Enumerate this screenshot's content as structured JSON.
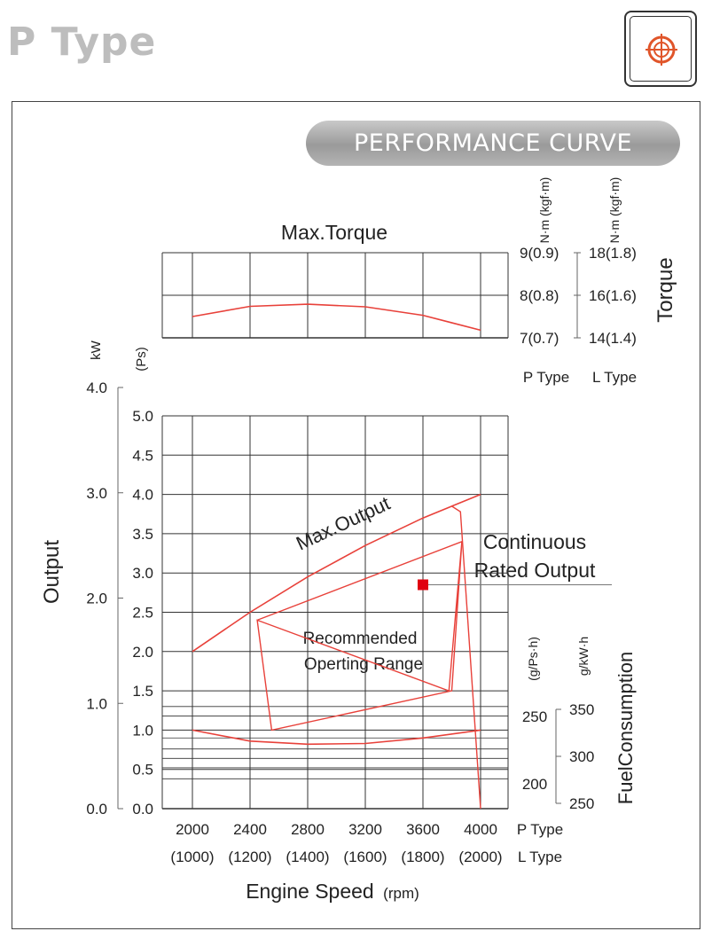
{
  "page": {
    "title": "P Type",
    "icon": "crosshair-target-icon",
    "banner": "PERFORMANCE CURVE"
  },
  "colors": {
    "curve": "#e8413a",
    "grid": "#333333",
    "banner": "#a8a8a8",
    "marker": "#e0000f"
  },
  "chart_data": {
    "type": "line",
    "title": "Max.Torque",
    "xlabel": "Engine Speed",
    "xlabel_unit": "(rpm)",
    "x": [
      2000,
      2400,
      2800,
      3200,
      3600,
      4000
    ],
    "x_labels_p": [
      "2000",
      "2400",
      "2800",
      "3200",
      "3600",
      "4000"
    ],
    "x_labels_l": [
      "(1000)",
      "(1200)",
      "(1400)",
      "(1600)",
      "(1800)",
      "(2000)"
    ],
    "x_series_p": "P Type",
    "x_series_l": "L Type",
    "xlim": [
      2000,
      4000
    ],
    "output_axis": {
      "label": "Output",
      "unit_kw": "kW",
      "unit_ps": "(Ps)",
      "kw_ticks": [
        "4.0",
        "3.0",
        "2.0",
        "1.0",
        "0.0"
      ],
      "ps_ticks": [
        "5.0",
        "4.5",
        "4.0",
        "3.5",
        "3.0",
        "2.5",
        "2.0",
        "1.5",
        "1.0",
        "0.5",
        "0.0"
      ],
      "ylim_ps": [
        0,
        5
      ]
    },
    "torque_axis": {
      "label": "Torque",
      "unit_p": "N·m (kgf·m)",
      "unit_l": "N·m (kgf·m)",
      "ticks_p": [
        "9(0.9)",
        "8(0.8)",
        "7(0.7)"
      ],
      "ticks_l": [
        "18(1.8)",
        "16(1.6)",
        "14(1.4)"
      ],
      "series_p": "P Type",
      "series_l": "L Type",
      "ylim_nm": [
        7,
        9
      ]
    },
    "fuel_axis": {
      "label": "FuelConsumption",
      "unit_ps": "(g/Ps·h)",
      "unit_kw": "g/kW·h",
      "ticks_ps": [
        "250",
        "200"
      ],
      "ticks_kw": [
        "350",
        "300",
        "250"
      ]
    },
    "series": [
      {
        "name": "Max.Torque",
        "unit": "N·m",
        "x": [
          2000,
          2400,
          2800,
          3200,
          3600,
          4000
        ],
        "values": [
          7.5,
          7.74,
          7.79,
          7.73,
          7.53,
          7.18
        ]
      },
      {
        "name": "Max.Output",
        "unit": "Ps",
        "x": [
          2000,
          2400,
          2800,
          3200,
          3600,
          3800,
          4000
        ],
        "values": [
          2.0,
          2.5,
          2.95,
          3.35,
          3.7,
          3.85,
          4.0
        ]
      },
      {
        "name": "Fuel Consumption",
        "unit": "Ps-scale",
        "x": [
          2000,
          2400,
          2800,
          3200,
          3600,
          4000
        ],
        "values": [
          1.0,
          0.86,
          0.82,
          0.83,
          0.9,
          1.0
        ]
      }
    ],
    "recommended_range": {
      "label_line1": "Recommended",
      "label_line2": "Operting Range",
      "x": [
        2450,
        3870,
        3780,
        2450,
        2550,
        3800,
        3870
      ],
      "values": [
        2.4,
        3.4,
        1.5,
        2.4,
        1.0,
        1.5,
        3.4
      ]
    },
    "continuous_rated_output": {
      "label_line1": "Continuous",
      "label_line2": "Rated Output",
      "x": 3600,
      "value": 2.85
    },
    "max_output_label": "Max.Output"
  }
}
